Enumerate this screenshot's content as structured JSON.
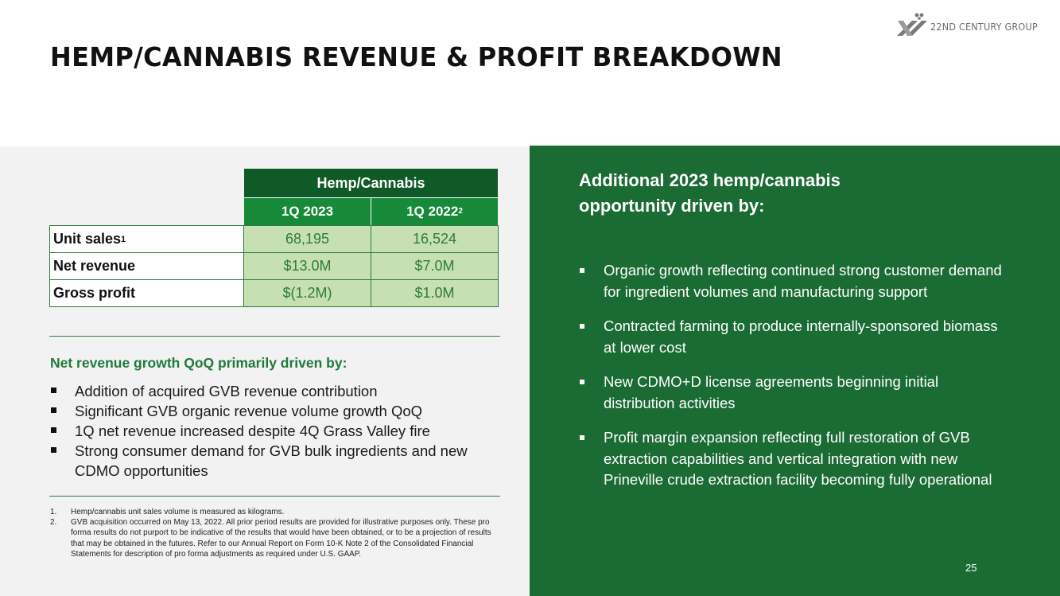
{
  "header": {
    "title": "HEMP/CANNABIS REVENUE & PROFIT BREAKDOWN",
    "logo_text": "22ND CENTURY GROUP",
    "logo_icon": "xxii-logo-icon"
  },
  "table": {
    "group_header": "Hemp/Cannabis",
    "columns": [
      {
        "label": "1Q 2023",
        "sup": ""
      },
      {
        "label": "1Q 2022",
        "sup": "2"
      }
    ],
    "rows": [
      {
        "label": "Unit sales",
        "sup": "1",
        "values": [
          "68,195",
          "16,524"
        ]
      },
      {
        "label": "Net revenue",
        "sup": "",
        "values": [
          "$13.0M",
          "$7.0M"
        ]
      },
      {
        "label": "Gross profit",
        "sup": "",
        "values": [
          "$(1.2M)",
          "$1.0M"
        ]
      }
    ]
  },
  "left": {
    "heading": "Net revenue growth QoQ primarily driven by:",
    "bullets": [
      "Addition of acquired GVB revenue contribution",
      "Significant GVB organic revenue volume growth QoQ",
      "1Q net revenue increased despite 4Q Grass Valley fire",
      "Strong consumer demand for GVB bulk ingredients and new CDMO opportunities"
    ]
  },
  "footnotes": [
    {
      "num": "1.",
      "text": "Hemp/cannabis unit sales volume is measured as kilograms."
    },
    {
      "num": "2.",
      "text": "GVB acquisition occurred on May 13, 2022. All prior period results are provided for illustrative purposes only. These pro forma results do not purport to be indicative of the results that would have been obtained, or to be a projection of results that may be obtained in the futures. Refer to our Annual Report on Form 10-K Note 2 of the Consolidated Financial Statements for description of pro forma adjustments as required under U.S. GAAP."
    }
  ],
  "right": {
    "heading": "Additional 2023 hemp/cannabis opportunity driven by:",
    "bullets": [
      "Organic growth reflecting continued strong customer demand for ingredient volumes and manufacturing support",
      "Contracted farming to produce internally-sponsored biomass at lower cost",
      "New CDMO+D license agreements beginning initial distribution activities",
      "Profit margin expansion reflecting full restoration of GVB extraction capabilities and vertical integration with new Prineville crude extraction facility becoming fully operational"
    ]
  },
  "page_number": "25",
  "colors": {
    "dark_green": "#1b6b35",
    "header_green": "#0f5a27",
    "subheader_green": "#178a3a",
    "light_green_cell": "#c6e0b4",
    "text_green": "#1f7a3a",
    "panel_gray": "#f2f2f2"
  }
}
